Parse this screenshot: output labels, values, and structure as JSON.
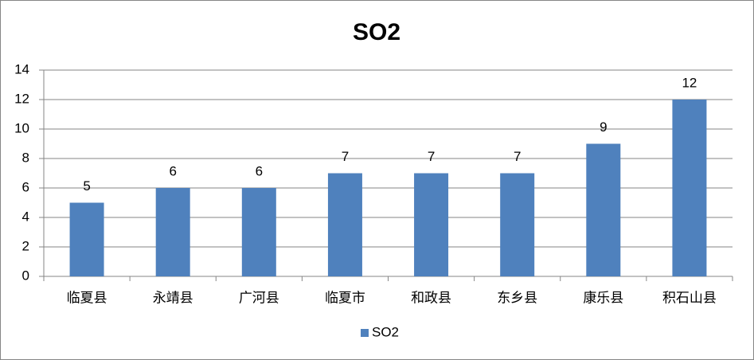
{
  "chart_data": {
    "type": "bar",
    "title": "SO2",
    "categories": [
      "临夏县",
      "永靖县",
      "广河县",
      "临夏市",
      "和政县",
      "东乡县",
      "康乐县",
      "积石山县"
    ],
    "series": [
      {
        "name": "SO2",
        "color": "#4f81bd",
        "values": [
          5,
          6,
          6,
          7,
          7,
          7,
          9,
          12
        ]
      }
    ],
    "ylim": [
      0,
      14
    ],
    "yticks": [
      0,
      2,
      4,
      6,
      8,
      10,
      12,
      14
    ],
    "grid": true,
    "legend": "bottom",
    "data_labels": true
  }
}
